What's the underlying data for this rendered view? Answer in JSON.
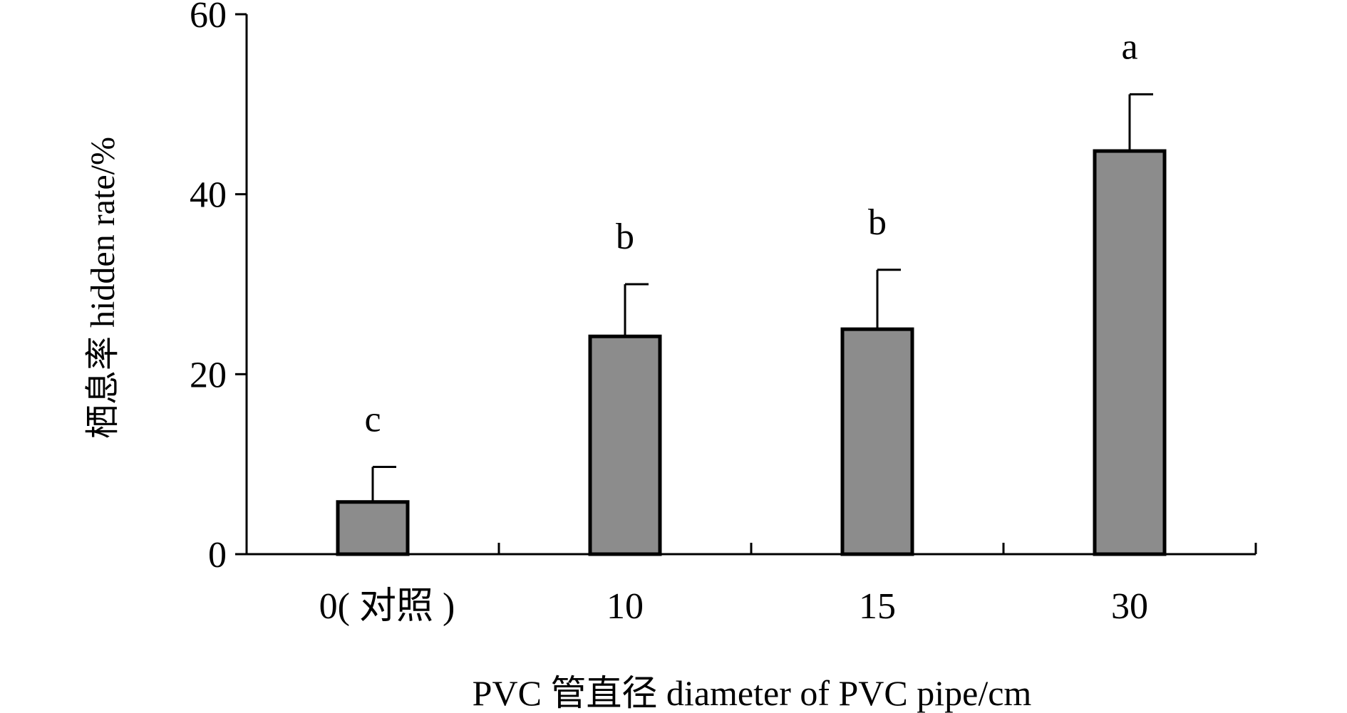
{
  "chart_data": {
    "type": "bar",
    "categories": [
      "0( 对照 )",
      "10",
      "15",
      "30"
    ],
    "values": [
      5.8,
      24.2,
      25.0,
      44.8
    ],
    "errors": [
      3.9,
      5.8,
      6.6,
      6.3
    ],
    "significance": [
      "c",
      "b",
      "b",
      "a"
    ],
    "ylabel": "栖息率 hidden rate/%",
    "xlabel": "PVC 管直径 diameter of PVC pipe/cm",
    "ylim": [
      0,
      60
    ],
    "yticks": [
      "0",
      "20",
      "40",
      "60"
    ],
    "bar_color": "#8c8c8c",
    "grid": false,
    "legend": "none"
  }
}
